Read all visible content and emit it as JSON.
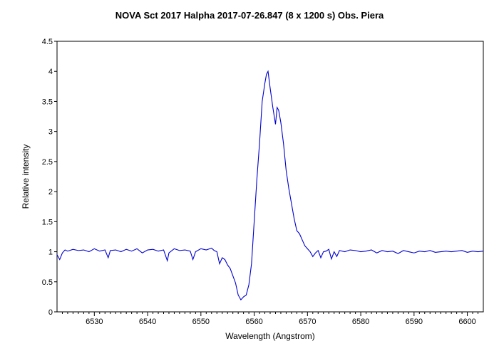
{
  "chart_data": {
    "type": "line",
    "title": "NOVA Sct 2017  Halpha  2017-07-26.847 (8 x 1200 s)   Obs. Piera",
    "xlabel": "Wavelength (Angstrom)",
    "ylabel": "Relative intensity",
    "xlim": [
      6523,
      6603
    ],
    "ylim": [
      0,
      4.5
    ],
    "x_ticks": [
      6530,
      6540,
      6550,
      6560,
      6570,
      6580,
      6590,
      6600
    ],
    "y_ticks": [
      0,
      0.5,
      1,
      1.5,
      2,
      2.5,
      3,
      3.5,
      4,
      4.5
    ],
    "grid": false,
    "series_color": "#0000d0",
    "series": [
      {
        "x": [
          6523.0,
          6523.5,
          6524.0,
          6524.5,
          6525.0,
          6526.0,
          6527.0,
          6528.0,
          6529.0,
          6530.0,
          6531.0,
          6532.0,
          6532.6,
          6533.0,
          6534.0,
          6535.0,
          6536.0,
          6537.0,
          6538.0,
          6539.0,
          6540.0,
          6541.0,
          6542.0,
          6543.0,
          6543.7,
          6544.0,
          6545.0,
          6546.0,
          6547.0,
          6548.0,
          6548.5,
          6549.0,
          6550.0,
          6551.0,
          6552.0,
          6552.5,
          6553.0,
          6553.5,
          6554.0,
          6554.5,
          6555.0,
          6555.5,
          6556.0,
          6556.5,
          6557.0,
          6557.5,
          6558.0,
          6558.5,
          6559.0,
          6559.5,
          6560.0,
          6560.5,
          6561.0,
          6561.5,
          6562.0,
          6562.3,
          6562.6,
          6563.0,
          6563.5,
          6564.0,
          6564.3,
          6564.6,
          6565.0,
          6565.5,
          6566.0,
          6566.5,
          6567.0,
          6567.5,
          6568.0,
          6568.5,
          6569.0,
          6569.5,
          6570.0,
          6570.5,
          6571.0,
          6571.5,
          6572.0,
          6572.5,
          6573.0,
          6573.5,
          6574.0,
          6574.5,
          6575.0,
          6575.5,
          6576.0,
          6577.0,
          6578.0,
          6579.0,
          6580.0,
          6581.0,
          6582.0,
          6583.0,
          6584.0,
          6585.0,
          6586.0,
          6587.0,
          6588.0,
          6589.0,
          6590.0,
          6591.0,
          6592.0,
          6593.0,
          6594.0,
          6595.0,
          6596.0,
          6597.0,
          6598.0,
          6599.0,
          6600.0,
          6601.0,
          6602.0,
          6603.0
        ],
        "y": [
          0.95,
          0.87,
          0.98,
          1.03,
          1.01,
          1.04,
          1.02,
          1.03,
          1.0,
          1.05,
          1.01,
          1.03,
          0.9,
          1.02,
          1.03,
          1.0,
          1.04,
          1.01,
          1.05,
          0.98,
          1.03,
          1.04,
          1.01,
          1.03,
          0.85,
          0.98,
          1.05,
          1.02,
          1.03,
          1.01,
          0.87,
          1.0,
          1.05,
          1.03,
          1.06,
          1.02,
          1.0,
          0.8,
          0.9,
          0.87,
          0.78,
          0.72,
          0.6,
          0.48,
          0.28,
          0.2,
          0.25,
          0.28,
          0.45,
          0.8,
          1.5,
          2.2,
          2.8,
          3.5,
          3.8,
          3.95,
          4.0,
          3.72,
          3.4,
          3.12,
          3.4,
          3.35,
          3.15,
          2.8,
          2.35,
          2.05,
          1.8,
          1.55,
          1.35,
          1.3,
          1.2,
          1.1,
          1.05,
          1.0,
          0.92,
          0.98,
          1.02,
          0.9,
          1.0,
          1.01,
          1.04,
          0.88,
          1.0,
          0.92,
          1.02,
          1.0,
          1.03,
          1.02,
          1.0,
          1.01,
          1.03,
          0.98,
          1.02,
          1.0,
          1.01,
          0.97,
          1.02,
          1.0,
          0.98,
          1.01,
          1.0,
          1.02,
          0.99,
          1.0,
          1.01,
          1.0,
          1.01,
          1.02,
          0.99,
          1.01,
          1.0,
          1.01
        ]
      }
    ]
  }
}
